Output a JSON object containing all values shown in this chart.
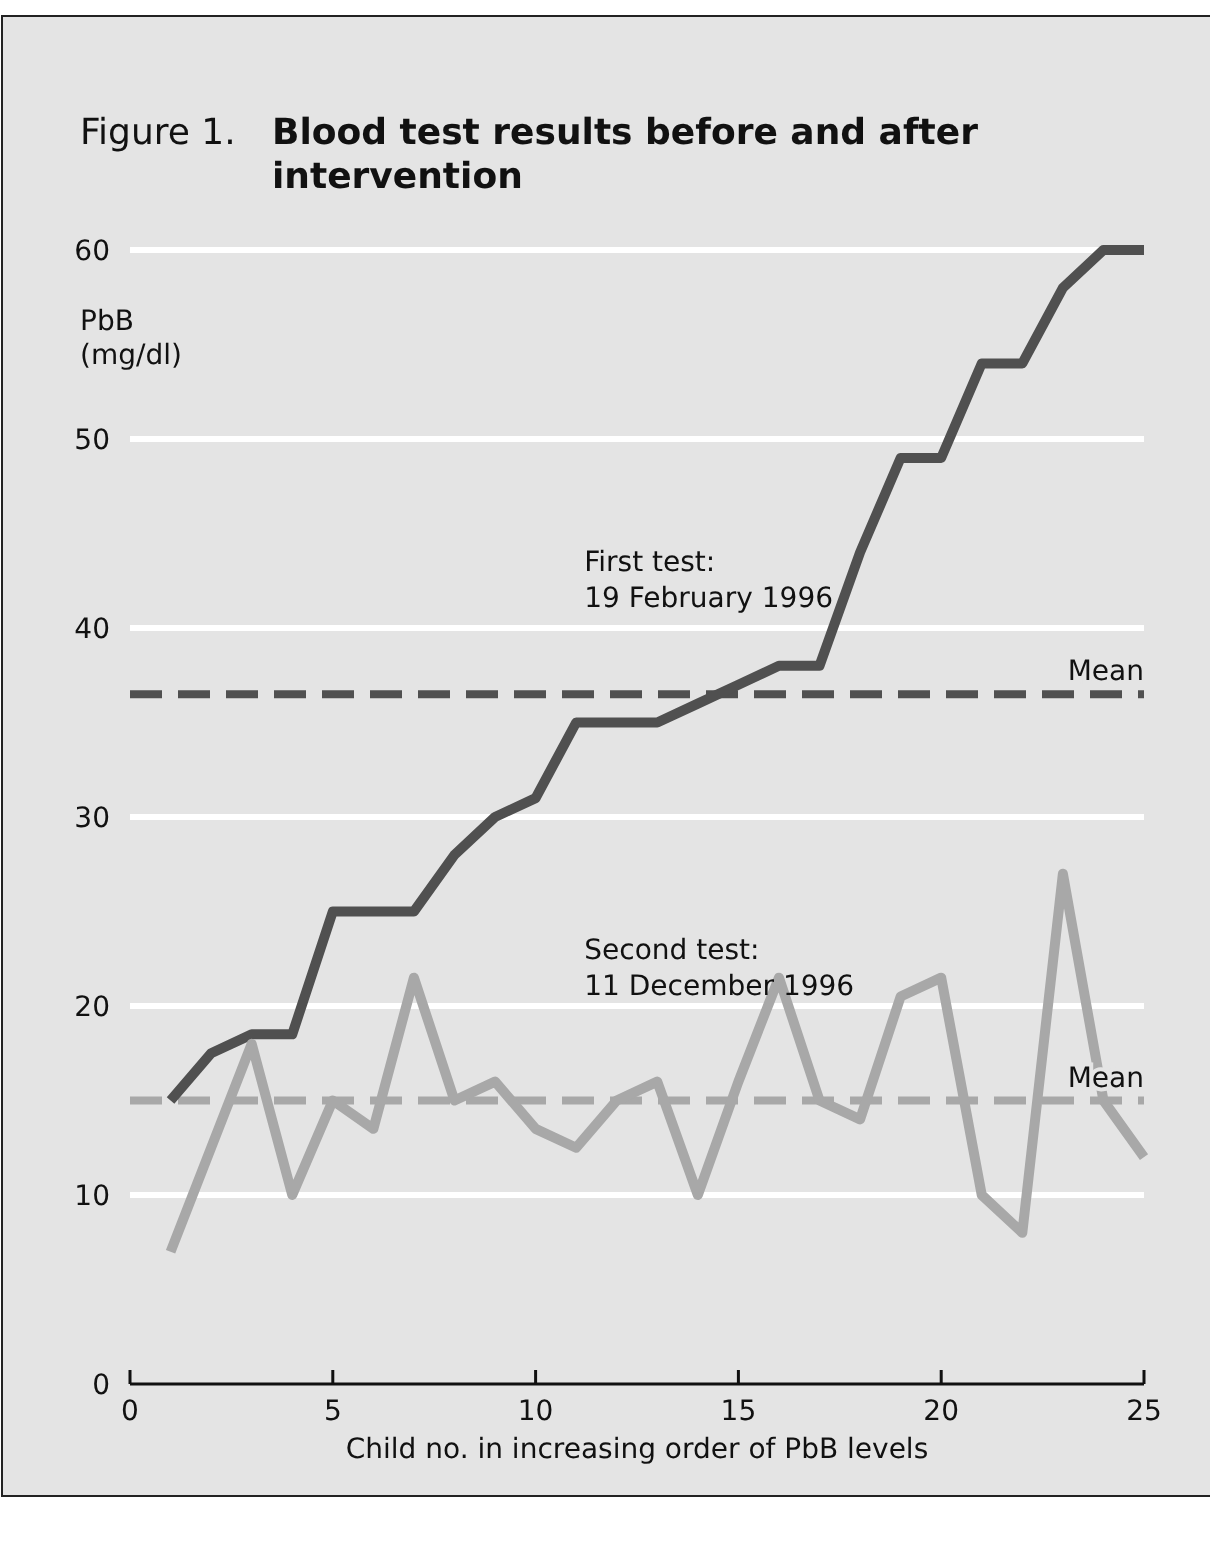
{
  "chart_data": {
    "type": "line",
    "title": "Blood test results before and after intervention",
    "annotations": [
      "Figure 1."
    ],
    "ylabel": "PbB (mg/dl)",
    "xlabel": "Child no. in increasing order of PbB levels",
    "x": [
      1,
      2,
      3,
      4,
      5,
      6,
      7,
      8,
      9,
      10,
      11,
      12,
      13,
      14,
      15,
      16,
      17,
      18,
      19,
      20,
      21,
      22,
      23,
      24,
      25
    ],
    "series": [
      {
        "name": "First test: 19 February 1996",
        "color": "#505050",
        "values": [
          15,
          17.5,
          18.5,
          18.5,
          25,
          25,
          25,
          28,
          30,
          31,
          35,
          35,
          35,
          36,
          37,
          38,
          38,
          44,
          49,
          49,
          54,
          54,
          58,
          60,
          60
        ]
      },
      {
        "name": "Second test: 11 December 1996",
        "color": "#a8a8a8",
        "values": [
          7,
          12.5,
          18,
          10,
          15,
          13.5,
          21.5,
          15,
          16,
          13.5,
          12.5,
          15,
          16,
          10,
          16,
          21.5,
          15,
          14,
          20.5,
          21.5,
          10,
          8,
          27,
          15,
          12
        ]
      }
    ],
    "ref_lines": [
      {
        "axis": "y",
        "value": 36.5,
        "label": "Mean",
        "color": "#505050",
        "line_style": "dashed"
      },
      {
        "axis": "y",
        "value": 15,
        "label": "Mean",
        "color": "#a8a8a8",
        "line_style": "dashed"
      }
    ],
    "xlim": [
      0,
      25
    ],
    "xticks": [
      0,
      5,
      10,
      15,
      20,
      25
    ],
    "ylim": [
      0,
      60
    ],
    "yticks": [
      0,
      10,
      20,
      30,
      40,
      50,
      60
    ],
    "grid": "y",
    "marker": "none",
    "line_style": "solid"
  }
}
